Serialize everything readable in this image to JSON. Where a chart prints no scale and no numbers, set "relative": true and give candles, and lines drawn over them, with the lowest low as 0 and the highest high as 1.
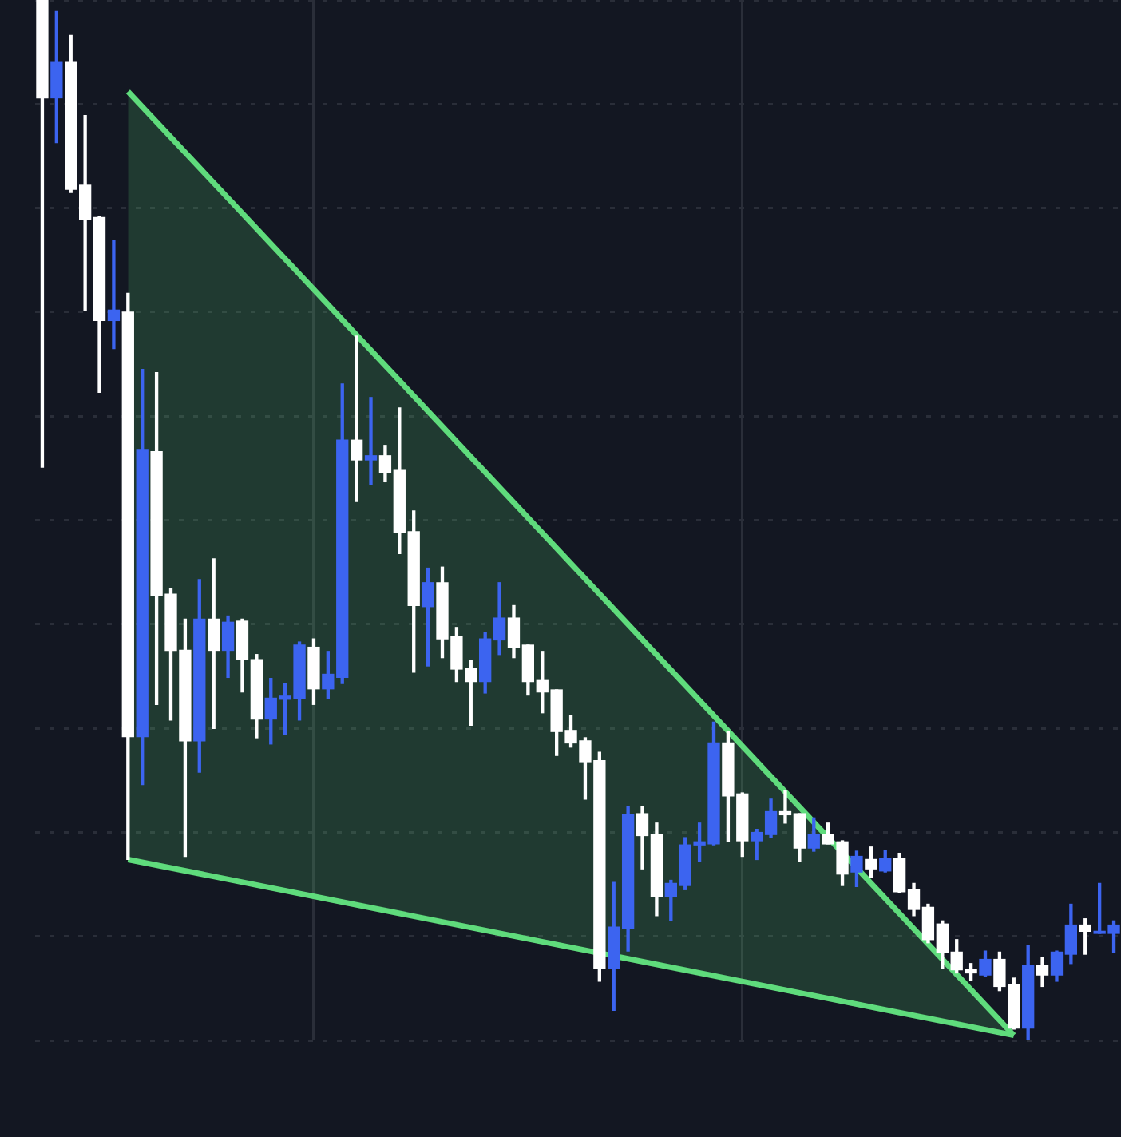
{
  "chart_data": {
    "type": "candlestick",
    "relative": true,
    "grid": true,
    "legend": false,
    "categories": [
      null,
      null,
      null,
      null,
      null,
      null,
      null,
      null,
      null,
      null,
      null,
      null,
      null,
      null,
      null,
      null,
      null,
      null,
      null,
      null,
      null,
      null,
      null,
      null,
      null,
      null,
      null,
      null,
      null,
      null,
      null,
      null,
      null,
      null,
      null,
      null,
      null,
      null,
      null,
      null,
      null,
      null,
      null,
      null,
      null,
      null,
      null,
      null,
      null,
      null,
      null,
      null,
      null,
      null,
      null,
      null,
      null,
      null,
      null,
      null,
      null,
      null,
      null,
      null,
      null,
      null,
      null,
      null,
      null,
      null,
      null,
      null,
      null,
      null,
      null,
      null
    ],
    "ohlc": [
      [
        1.0,
        1.0,
        0.551,
        0.906
      ],
      [
        0.906,
        0.989,
        0.863,
        0.94
      ],
      [
        0.94,
        0.966,
        0.815,
        0.818
      ],
      [
        0.822,
        0.889,
        0.702,
        0.789
      ],
      [
        0.791,
        0.792,
        0.623,
        0.692
      ],
      [
        0.692,
        0.769,
        0.665,
        0.702
      ],
      [
        0.7,
        0.718,
        0.174,
        0.292
      ],
      [
        0.292,
        0.645,
        0.246,
        0.568
      ],
      [
        0.566,
        0.642,
        0.323,
        0.428
      ],
      [
        0.429,
        0.434,
        0.308,
        0.375
      ],
      [
        0.375,
        0.405,
        0.177,
        0.288
      ],
      [
        0.288,
        0.443,
        0.258,
        0.405
      ],
      [
        0.405,
        0.463,
        0.3,
        0.375
      ],
      [
        0.375,
        0.408,
        0.349,
        0.402
      ],
      [
        0.403,
        0.405,
        0.335,
        0.366
      ],
      [
        0.366,
        0.371,
        0.291,
        0.309
      ],
      [
        0.309,
        0.348,
        0.285,
        0.329
      ],
      [
        0.328,
        0.343,
        0.294,
        0.331
      ],
      [
        0.329,
        0.383,
        0.308,
        0.38
      ],
      [
        0.378,
        0.386,
        0.323,
        0.338
      ],
      [
        0.338,
        0.374,
        0.329,
        0.352
      ],
      [
        0.349,
        0.631,
        0.343,
        0.577
      ],
      [
        0.577,
        0.677,
        0.518,
        0.558
      ],
      [
        0.558,
        0.618,
        0.534,
        0.562
      ],
      [
        0.562,
        0.572,
        0.537,
        0.546
      ],
      [
        0.548,
        0.608,
        0.468,
        0.488
      ],
      [
        0.489,
        0.509,
        0.354,
        0.418
      ],
      [
        0.417,
        0.454,
        0.36,
        0.44
      ],
      [
        0.44,
        0.455,
        0.368,
        0.386
      ],
      [
        0.388,
        0.397,
        0.345,
        0.357
      ],
      [
        0.358,
        0.365,
        0.303,
        0.345
      ],
      [
        0.345,
        0.392,
        0.334,
        0.386
      ],
      [
        0.385,
        0.44,
        0.371,
        0.406
      ],
      [
        0.406,
        0.418,
        0.368,
        0.378
      ],
      [
        0.38,
        0.38,
        0.332,
        0.345
      ],
      [
        0.346,
        0.374,
        0.315,
        0.335
      ],
      [
        0.337,
        0.337,
        0.274,
        0.297
      ],
      [
        0.298,
        0.312,
        0.282,
        0.286
      ],
      [
        0.288,
        0.291,
        0.232,
        0.268
      ],
      [
        0.269,
        0.277,
        0.057,
        0.069
      ],
      [
        0.069,
        0.152,
        0.029,
        0.109
      ],
      [
        0.108,
        0.225,
        0.086,
        0.217
      ],
      [
        0.218,
        0.225,
        0.165,
        0.197
      ],
      [
        0.198,
        0.209,
        0.12,
        0.138
      ],
      [
        0.138,
        0.154,
        0.115,
        0.151
      ],
      [
        0.149,
        0.195,
        0.145,
        0.188
      ],
      [
        0.188,
        0.209,
        0.172,
        0.191
      ],
      [
        0.189,
        0.306,
        0.188,
        0.286
      ],
      [
        0.286,
        0.297,
        0.191,
        0.235
      ],
      [
        0.237,
        0.238,
        0.177,
        0.192
      ],
      [
        0.192,
        0.203,
        0.174,
        0.2
      ],
      [
        0.198,
        0.232,
        0.195,
        0.22
      ],
      [
        0.22,
        0.24,
        0.209,
        0.217
      ],
      [
        0.218,
        0.218,
        0.172,
        0.185
      ],
      [
        0.185,
        0.214,
        0.182,
        0.198
      ],
      [
        0.198,
        0.209,
        0.189,
        0.189
      ],
      [
        0.191,
        0.192,
        0.149,
        0.16
      ],
      [
        0.162,
        0.182,
        0.148,
        0.177
      ],
      [
        0.174,
        0.186,
        0.157,
        0.165
      ],
      [
        0.163,
        0.183,
        0.162,
        0.175
      ],
      [
        0.175,
        0.18,
        0.142,
        0.143
      ],
      [
        0.145,
        0.151,
        0.12,
        0.126
      ],
      [
        0.128,
        0.131,
        0.094,
        0.097
      ],
      [
        0.112,
        0.115,
        0.069,
        0.085
      ],
      [
        0.085,
        0.097,
        0.065,
        0.068
      ],
      [
        0.068,
        0.074,
        0.058,
        0.065
      ],
      [
        0.063,
        0.086,
        0.062,
        0.078
      ],
      [
        0.078,
        0.085,
        0.048,
        0.052
      ],
      [
        0.054,
        0.06,
        0.011,
        0.012
      ],
      [
        0.012,
        0.091,
        0.0,
        0.072
      ],
      [
        0.072,
        0.08,
        0.052,
        0.063
      ],
      [
        0.063,
        0.086,
        0.057,
        0.085
      ],
      [
        0.083,
        0.131,
        0.074,
        0.111
      ],
      [
        0.111,
        0.117,
        0.083,
        0.105
      ],
      [
        0.103,
        0.151,
        0.103,
        0.105
      ],
      [
        0.103,
        0.115,
        0.085,
        0.111
      ]
    ],
    "colors": [
      "#ffffff",
      "#3c64f0",
      "#ffffff",
      "#ffffff",
      "#ffffff",
      "#3c64f0",
      "#ffffff",
      "#3c64f0",
      "#ffffff",
      "#ffffff",
      "#ffffff",
      "#3c64f0",
      "#ffffff",
      "#3c64f0",
      "#ffffff",
      "#ffffff",
      "#3c64f0",
      "#3c64f0",
      "#3c64f0",
      "#ffffff",
      "#3c64f0",
      "#3c64f0",
      "#ffffff",
      "#3c64f0",
      "#ffffff",
      "#ffffff",
      "#ffffff",
      "#3c64f0",
      "#ffffff",
      "#ffffff",
      "#ffffff",
      "#3c64f0",
      "#3c64f0",
      "#ffffff",
      "#ffffff",
      "#ffffff",
      "#ffffff",
      "#ffffff",
      "#ffffff",
      "#ffffff",
      "#3c64f0",
      "#3c64f0",
      "#ffffff",
      "#ffffff",
      "#3c64f0",
      "#3c64f0",
      "#3c64f0",
      "#3c64f0",
      "#ffffff",
      "#ffffff",
      "#3c64f0",
      "#3c64f0",
      "#ffffff",
      "#ffffff",
      "#3c64f0",
      "#ffffff",
      "#ffffff",
      "#3c64f0",
      "#ffffff",
      "#3c64f0",
      "#ffffff",
      "#ffffff",
      "#ffffff",
      "#ffffff",
      "#ffffff",
      "#ffffff",
      "#3c64f0",
      "#ffffff",
      "#ffffff",
      "#3c64f0",
      "#ffffff",
      "#3c64f0",
      "#3c64f0",
      "#ffffff",
      "#3c64f0",
      "#3c64f0"
    ],
    "series": [
      {
        "type": "line",
        "color": "#5fdb7c",
        "values": [
          null,
          null,
          null,
          null,
          null,
          null,
          0.912,
          null,
          null,
          null,
          null,
          null,
          null,
          null,
          null,
          null,
          null,
          null,
          null,
          null,
          null,
          null,
          null,
          null,
          null,
          null,
          null,
          null,
          null,
          null,
          null,
          null,
          null,
          null,
          null,
          null,
          null,
          null,
          null,
          null,
          null,
          null,
          null,
          null,
          null,
          null,
          null,
          null,
          null,
          null,
          null,
          null,
          null,
          null,
          null,
          null,
          null,
          null,
          null,
          null,
          null,
          null,
          null,
          null,
          null,
          null,
          null,
          null,
          0.005,
          null,
          null,
          null,
          null,
          null,
          null,
          null
        ],
        "upper": [
          null,
          null,
          null,
          null,
          null,
          null,
          0.912,
          null,
          null,
          null,
          null,
          null,
          null,
          null,
          null,
          null,
          null,
          null,
          null,
          null,
          null,
          null,
          null,
          null,
          null,
          null,
          null,
          null,
          null,
          null,
          null,
          null,
          null,
          null,
          null,
          null,
          null,
          null,
          null,
          null,
          null,
          null,
          null,
          null,
          null,
          null,
          null,
          null,
          null,
          null,
          null,
          null,
          null,
          null,
          null,
          null,
          null,
          null,
          null,
          null,
          null,
          null,
          null,
          null,
          null,
          null,
          null,
          null,
          0.005,
          null,
          null,
          null,
          null,
          null,
          null,
          null
        ],
        "lower": [
          null,
          null,
          null,
          null,
          null,
          null,
          0.174,
          null,
          null,
          null,
          null,
          null,
          null,
          null,
          null,
          null,
          null,
          null,
          null,
          null,
          null,
          null,
          null,
          null,
          null,
          null,
          null,
          null,
          null,
          null,
          null,
          null,
          null,
          null,
          null,
          null,
          null,
          null,
          null,
          null,
          null,
          null,
          null,
          null,
          null,
          null,
          null,
          null,
          null,
          null,
          null,
          null,
          null,
          null,
          null,
          null,
          null,
          null,
          null,
          null,
          null,
          null,
          null,
          null,
          null,
          null,
          null,
          null,
          0.005,
          null,
          null,
          null,
          null,
          null,
          null,
          null
        ]
      },
      {
        "type": "line",
        "color": "#5fdb7c",
        "values": [
          null,
          null,
          null,
          null,
          null,
          null,
          0.174,
          null,
          null,
          null,
          null,
          null,
          null,
          null,
          null,
          null,
          null,
          null,
          null,
          null,
          null,
          null,
          null,
          null,
          null,
          null,
          null,
          null,
          null,
          null,
          null,
          null,
          null,
          null,
          null,
          null,
          null,
          null,
          null,
          null,
          null,
          null,
          null,
          null,
          null,
          null,
          null,
          null,
          null,
          null,
          null,
          null,
          null,
          null,
          null,
          null,
          null,
          null,
          null,
          null,
          null,
          null,
          null,
          null,
          null,
          null,
          null,
          null,
          0.005,
          null,
          null,
          null,
          null,
          null,
          null,
          null
        ]
      }
    ]
  }
}
